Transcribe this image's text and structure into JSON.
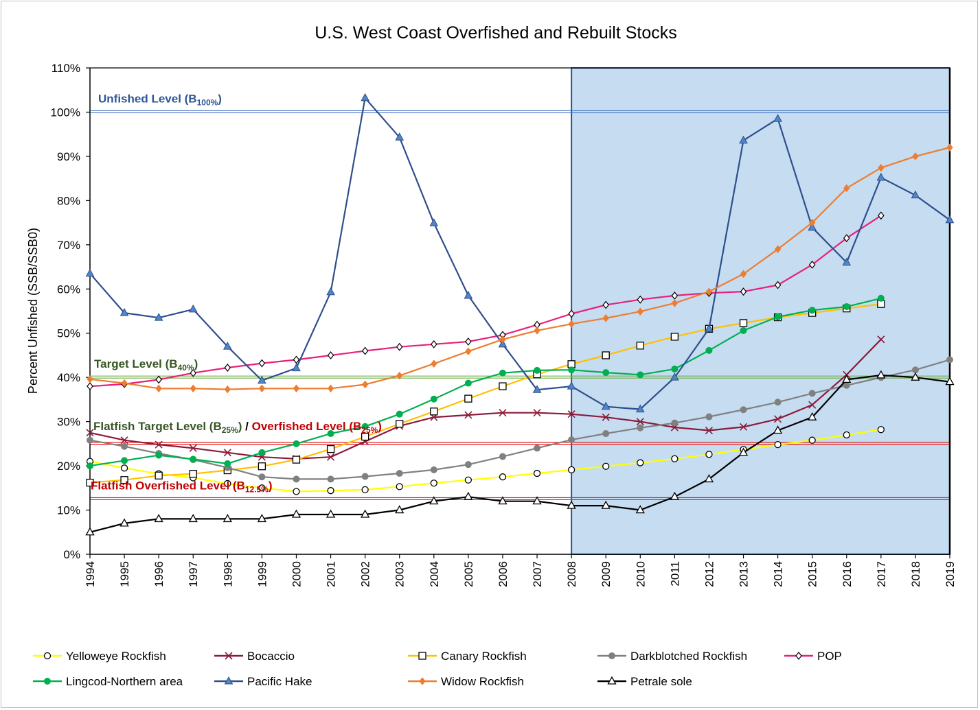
{
  "chart_data": {
    "type": "line",
    "title": "U.S. West Coast Overfished and Rebuilt Stocks",
    "xlabel": "",
    "ylabel": "Percent Unfished (SSB/SSB0)",
    "x": [
      1994,
      1995,
      1996,
      1997,
      1998,
      1999,
      2000,
      2001,
      2002,
      2003,
      2004,
      2005,
      2006,
      2007,
      2008,
      2009,
      2010,
      2011,
      2012,
      2013,
      2014,
      2015,
      2016,
      2017,
      2018,
      2019
    ],
    "ylim": [
      0,
      110
    ],
    "yticks": [
      0,
      10,
      20,
      30,
      40,
      50,
      60,
      70,
      80,
      90,
      100,
      110
    ],
    "ytick_labels": [
      "0%",
      "10%",
      "20%",
      "30%",
      "40%",
      "50%",
      "60%",
      "70%",
      "80%",
      "90%",
      "100%",
      "110%"
    ],
    "grid": false,
    "legend_position": "bottom",
    "shaded_region": {
      "x_from": 2008,
      "x_to": 2019,
      "color": "#c5dcf1"
    },
    "reference_lines": [
      {
        "y": 100,
        "color": "#4472c4",
        "label_main": "Unfished Level (B",
        "label_sub": "100%",
        "label_end": ")",
        "label_color": "#2f5597"
      },
      {
        "y": 40,
        "color": "#70ad47",
        "label_main": "Target Level (B",
        "label_sub": "40%",
        "label_end": ")",
        "label_color": "#375623"
      },
      {
        "y": 25,
        "color": "#e02020",
        "label_main": "",
        "label_sub": "",
        "label_end": "",
        "label_color": "#c00000"
      },
      {
        "y": 12.5,
        "color": "#e02020",
        "label_main": "Flatfish Overfished Level (B",
        "label_sub": "12.5%",
        "label_end": ")",
        "label_color": "#c00000"
      }
    ],
    "combined_label": {
      "part1_main": "Flatfish Target Level (B",
      "part1_sub": "25%",
      "part1_end": ")",
      "part1_color": "#375623",
      "separator": " / ",
      "part2_main": "Overfished Level (B",
      "part2_sub": "25%",
      "part2_end": ")",
      "part2_color": "#c00000"
    },
    "series": [
      {
        "name": "Yelloweye Rockfish",
        "color": "#ffff00",
        "marker": "circle-open",
        "values": [
          21,
          19.5,
          18.2,
          17.3,
          16,
          15,
          14.2,
          14.4,
          14.6,
          15.3,
          16.1,
          16.8,
          17.5,
          18.3,
          19.1,
          19.9,
          20.7,
          21.6,
          22.6,
          23.7,
          24.8,
          25.8,
          27,
          28.2,
          null,
          null
        ]
      },
      {
        "name": "Bocaccio",
        "color": "#8b1a3a",
        "marker": "x",
        "values": [
          27.5,
          25.8,
          24.8,
          24,
          23,
          22,
          21.6,
          22,
          25.5,
          29,
          31,
          31.5,
          32,
          32,
          31.7,
          31,
          30,
          28.7,
          28,
          28.8,
          30.6,
          33.8,
          40.6,
          48.6,
          null,
          null
        ]
      },
      {
        "name": "Canary Rockfish",
        "color": "#ffc000",
        "marker": "square-open",
        "values": [
          16.2,
          16.8,
          17.8,
          18.2,
          19,
          19.9,
          21.4,
          23.8,
          26.6,
          29.5,
          32.3,
          35.2,
          38,
          40.7,
          43,
          45,
          47.2,
          49.2,
          51,
          52.3,
          53.6,
          54.6,
          55.6,
          56.6,
          null,
          null
        ]
      },
      {
        "name": "Darkblotched Rockfish",
        "color": "#808080",
        "marker": "circle",
        "values": [
          25.8,
          24.4,
          22.8,
          21.4,
          19.6,
          17.5,
          17,
          17,
          17.6,
          18.3,
          19.1,
          20.3,
          22.1,
          24,
          25.9,
          27.3,
          28.6,
          29.7,
          31.1,
          32.7,
          34.4,
          36.4,
          38.2,
          40,
          41.7,
          44
        ]
      },
      {
        "name": "POP",
        "color": "#e8207a",
        "marker": "diamond-open",
        "values": [
          38,
          38.5,
          39.5,
          41,
          42.2,
          43.2,
          44,
          45,
          46,
          46.9,
          47.5,
          48.1,
          49.6,
          51.9,
          54.4,
          56.4,
          57.6,
          58.5,
          59.1,
          59.4,
          60.9,
          65.5,
          71.5,
          76.6,
          null,
          null
        ]
      },
      {
        "name": "Lingcod-Northern area",
        "color": "#00b050",
        "marker": "circle",
        "values": [
          20,
          21.2,
          22.4,
          21.5,
          20.5,
          23,
          25,
          27.3,
          28.9,
          31.7,
          35.1,
          38.7,
          41,
          41.6,
          41.7,
          41.1,
          40.6,
          41.9,
          46.1,
          50.6,
          53.7,
          55.2,
          56,
          57.9,
          null,
          null
        ]
      },
      {
        "name": "Pacific Hake",
        "color": "#2e4e8c",
        "marker": "triangle",
        "values": [
          63.5,
          54.6,
          53.5,
          55.4,
          47,
          39.3,
          42.1,
          59.3,
          103.2,
          94.3,
          74.9,
          58.5,
          47.5,
          37.2,
          38,
          33.4,
          32.8,
          40,
          51,
          93.6,
          98.5,
          73.9,
          66,
          85.2,
          81.2,
          75.6
        ]
      },
      {
        "name": "Widow Rockfish",
        "color": "#ed7d31",
        "marker": "diamond",
        "values": [
          39.6,
          38.7,
          37.5,
          37.5,
          37.3,
          37.5,
          37.5,
          37.5,
          38.4,
          40.4,
          43.1,
          45.9,
          48.6,
          50.6,
          52.1,
          53.4,
          54.9,
          56.8,
          59.4,
          63.4,
          69,
          75,
          82.8,
          87.4,
          90,
          92
        ]
      },
      {
        "name": "Petrale sole",
        "color": "#000000",
        "marker": "triangle-open",
        "values": [
          5,
          7,
          8,
          8,
          8,
          8,
          9,
          9,
          9,
          10,
          12,
          13,
          12,
          12,
          11,
          11,
          10,
          13,
          17,
          23,
          28,
          31,
          39.5,
          40.5,
          40,
          39
        ]
      }
    ]
  }
}
